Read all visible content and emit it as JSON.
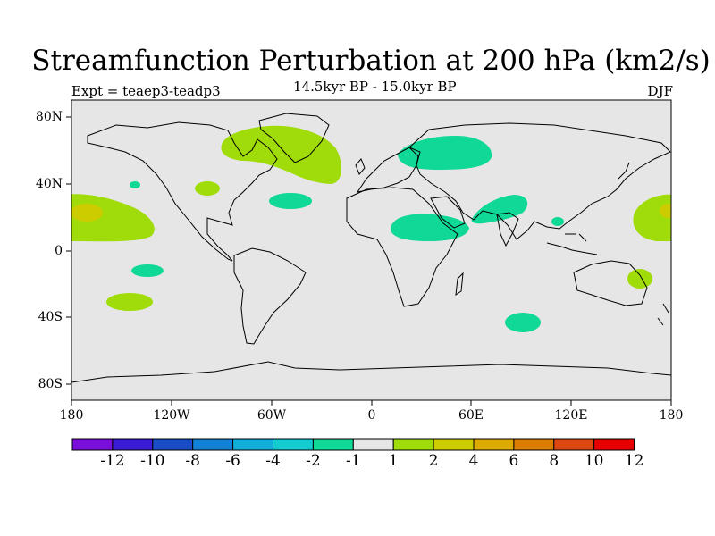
{
  "figure": {
    "title": "Streamfunction Perturbation at 200 hPa (km2/s)",
    "subtitle": "14.5kyr BP - 15.0kyr BP",
    "expt_label": "Expt = teaep3-teadp3",
    "season": "DJF"
  },
  "axes": {
    "lat_labels": [
      "80N",
      "40N",
      "0",
      "40S",
      "80S"
    ],
    "lon_labels": [
      "180",
      "120W",
      "60W",
      "0",
      "60E",
      "120E",
      "180"
    ]
  },
  "colorbar": {
    "labels": [
      "-12",
      "-10",
      "-8",
      "-6",
      "-4",
      "-2",
      "-1",
      "1",
      "2",
      "4",
      "6",
      "8",
      "10",
      "12"
    ],
    "colors": [
      "#7a0fdc",
      "#3a1bd6",
      "#1a4cc8",
      "#1282d6",
      "#10aed8",
      "#14ccd0",
      "#10d896",
      "#e6e6e6",
      "#a0dc0a",
      "#cccc00",
      "#dcaa00",
      "#dc7c00",
      "#dc4810",
      "#e60000"
    ]
  },
  "colors": {
    "background": "#e6e6e6",
    "neg_weak": "#10d896",
    "pos_weak": "#a0dc0a",
    "pos_mid": "#cccc00"
  },
  "chart_data": {
    "type": "heatmap",
    "title": "Streamfunction Perturbation at 200 hPa (km2/s)",
    "projection": "cylindrical equidistant",
    "lon_range": [
      -180,
      180
    ],
    "lat_range": [
      -90,
      90
    ],
    "contour_levels": [
      -12,
      -10,
      -8,
      -6,
      -4,
      -2,
      -1,
      1,
      2,
      4,
      6,
      8,
      10,
      12
    ],
    "anomalies": [
      {
        "name": "North America / Greenland",
        "lon": -70,
        "lat": 62,
        "band": "1 to 2"
      },
      {
        "name": "Siberia",
        "lon": 60,
        "lat": 60,
        "band": "-2 to -1"
      },
      {
        "name": "North Africa",
        "lon": 30,
        "lat": 13,
        "band": "-2 to -1"
      },
      {
        "name": "South Asia",
        "lon": 75,
        "lat": 25,
        "band": "-2 to -1"
      },
      {
        "name": "North Atlantic",
        "lon": -48,
        "lat": 30,
        "band": "-2 to -1"
      },
      {
        "name": "Central Pacific North",
        "lon": -165,
        "lat": 24,
        "band": "2 to 4"
      },
      {
        "name": "West Pacific",
        "lon": 170,
        "lat": 22,
        "band": "2 to 4"
      },
      {
        "name": "Southern Indian Ocean",
        "lon": 92,
        "lat": -42,
        "band": "-2 to -1"
      },
      {
        "name": "South Pacific",
        "lon": -137,
        "lat": -33,
        "band": "1 to 2"
      }
    ]
  }
}
